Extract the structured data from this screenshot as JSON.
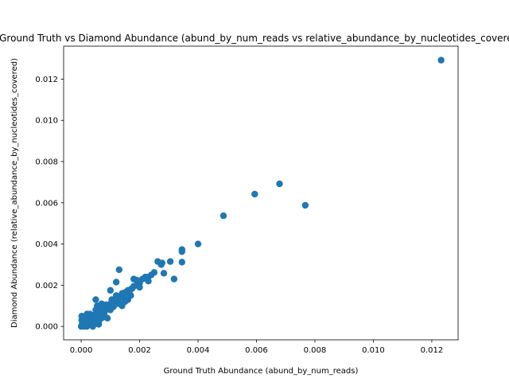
{
  "chart_data": {
    "type": "scatter",
    "title": "Ground Truth vs Diamond Abundance (abund_by_num_reads vs relative_abundance_by_nucleotides_covered)",
    "xlabel": "Ground Truth Abundance (abund_by_num_reads)",
    "ylabel": "Diamond Abundance (relative_abundance_by_nucleotides_covered)",
    "xlim": [
      -0.0006,
      0.0129
    ],
    "ylim": [
      -0.00065,
      0.0136
    ],
    "xticks": [
      0.0,
      0.002,
      0.004,
      0.006,
      0.008,
      0.01,
      0.012
    ],
    "xtick_labels": [
      "0.000",
      "0.002",
      "0.004",
      "0.006",
      "0.008",
      "0.010",
      "0.012"
    ],
    "yticks": [
      0.0,
      0.002,
      0.004,
      0.006,
      0.008,
      0.01,
      0.012
    ],
    "ytick_labels": [
      "0.000",
      "0.002",
      "0.004",
      "0.006",
      "0.008",
      "0.010",
      "0.012"
    ],
    "grid": false,
    "marker_color": "#1f77b4",
    "points": [
      [
        0.01232,
        0.01292
      ],
      [
        0.00767,
        0.00588
      ],
      [
        0.00679,
        0.00692
      ],
      [
        0.00594,
        0.00642
      ],
      [
        0.00487,
        0.00537
      ],
      [
        0.004,
        0.004
      ],
      [
        0.00345,
        0.00373
      ],
      [
        0.00345,
        0.00363
      ],
      [
        0.00345,
        0.00312
      ],
      [
        0.00305,
        0.00315
      ],
      [
        0.00277,
        0.00308
      ],
      [
        0.00274,
        0.003
      ],
      [
        0.00262,
        0.00315
      ],
      [
        0.00283,
        0.00258
      ],
      [
        0.00318,
        0.0023
      ],
      [
        0.0025,
        0.00262
      ],
      [
        0.0024,
        0.0025
      ],
      [
        0.0023,
        0.0024
      ],
      [
        0.0022,
        0.0024
      ],
      [
        0.0021,
        0.0023
      ],
      [
        0.002,
        0.0021
      ],
      [
        0.0019,
        0.002
      ],
      [
        0.0018,
        0.00195
      ],
      [
        0.0017,
        0.0018
      ],
      [
        0.0016,
        0.00175
      ],
      [
        0.0015,
        0.00165
      ],
      [
        0.0014,
        0.0015
      ],
      [
        0.0013,
        0.00145
      ],
      [
        0.0012,
        0.0013
      ],
      [
        0.0011,
        0.0012
      ],
      [
        0.001,
        0.0011
      ],
      [
        0.0009,
        0.001
      ],
      [
        0.0008,
        0.0009
      ],
      [
        0.0007,
        0.0008
      ],
      [
        0.0006,
        0.0007
      ],
      [
        0.0005,
        0.0006
      ],
      [
        0.0004,
        0.00045
      ],
      [
        0.0003,
        0.00035
      ],
      [
        0.0002,
        0.00025
      ],
      [
        0.0001,
        0.00012
      ],
      [
        5e-05,
        5e-05
      ],
      [
        0.0,
        0.0
      ],
      [
        2e-05,
        0.0005
      ],
      [
        2e-05,
        0.0003
      ],
      [
        0.0001,
        0.0004
      ],
      [
        0.0013,
        0.00275
      ],
      [
        0.0012,
        0.00215
      ],
      [
        0.0005,
        0.0013
      ],
      [
        0.001,
        0.00175
      ],
      [
        0.0015,
        0.0012
      ],
      [
        0.0014,
        0.001
      ],
      [
        0.0016,
        0.0013
      ],
      [
        0.0018,
        0.0023
      ],
      [
        0.0019,
        0.00225
      ],
      [
        0.0009,
        0.0004
      ],
      [
        0.0006,
        0.0002
      ],
      [
        0.0007,
        0.0011
      ],
      [
        0.0008,
        0.0007
      ],
      [
        0.0011,
        0.00095
      ],
      [
        0.0012,
        0.0015
      ],
      [
        0.0004,
        0.0002
      ],
      [
        0.0003,
        0.0001
      ],
      [
        0.0002,
        0.0006
      ],
      [
        0.0001,
        0.0002
      ],
      [
        0.0005,
        0.0003
      ],
      [
        0.0006,
        0.0005
      ],
      [
        0.0007,
        0.0004
      ],
      [
        0.001,
        0.0008
      ],
      [
        0.0013,
        0.0011
      ],
      [
        0.0002,
        0.0
      ],
      [
        0.0004,
        0.0
      ],
      [
        0.0006,
        0.0001
      ],
      [
        0.0008,
        0.0005
      ],
      [
        0.0014,
        0.0016
      ],
      [
        0.0017,
        0.0015
      ],
      [
        0.002,
        0.0019
      ],
      [
        0.0023,
        0.0022
      ],
      [
        0.0005,
        0.0008
      ],
      [
        0.0003,
        0.0006
      ],
      [
        0.0001,
        0.0
      ],
      [
        0.00025,
        0.0004
      ],
      [
        0.00035,
        0.00015
      ],
      [
        0.00045,
        0.00055
      ],
      [
        0.00055,
        0.001
      ],
      [
        0.00065,
        0.00075
      ],
      [
        0.00075,
        0.0006
      ],
      [
        0.00085,
        0.00105
      ],
      [
        0.00095,
        0.00085
      ],
      [
        0.00105,
        0.0013
      ],
      [
        0.00115,
        0.00105
      ],
      [
        0.00125,
        0.00125
      ],
      [
        0.00135,
        0.0014
      ],
      [
        0.00145,
        0.00135
      ],
      [
        0.00155,
        0.0015
      ],
      [
        0.00165,
        0.0016
      ],
      [
        0.00175,
        0.00185
      ],
      [
        5e-05,
        0.00015
      ],
      [
        0.00015,
        5e-05
      ],
      [
        8e-05,
        0.00035
      ],
      [
        3e-05,
        0.0001
      ],
      [
        0.00012,
        0.00028
      ],
      [
        0.00018,
        0.00012
      ],
      [
        0.00028,
        0.00022
      ],
      [
        0.00038,
        0.0003
      ]
    ]
  }
}
